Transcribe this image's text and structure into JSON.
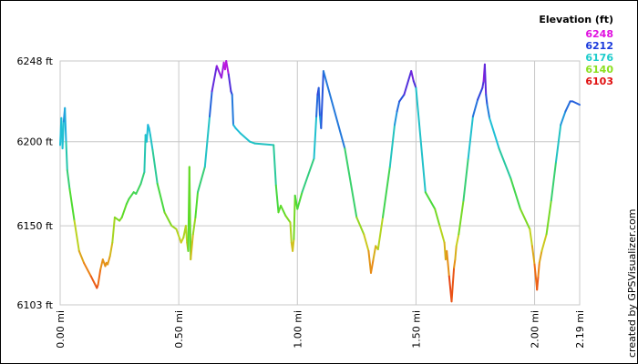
{
  "chart_data": {
    "type": "line",
    "xlabel": "",
    "ylabel": "",
    "xlim": [
      0,
      2.19
    ],
    "ylim": [
      6103,
      6248
    ],
    "x_ticks": [
      {
        "value": 0.0,
        "label": "0.00 mi"
      },
      {
        "value": 0.5,
        "label": "0.50 mi"
      },
      {
        "value": 1.0,
        "label": "1.00 mi"
      },
      {
        "value": 1.5,
        "label": "1.50 mi"
      },
      {
        "value": 2.0,
        "label": "2.00 mi"
      },
      {
        "value": 2.19,
        "label": "2.19 mi"
      }
    ],
    "y_ticks": [
      {
        "value": 6103,
        "label": "6103 ft"
      },
      {
        "value": 6150,
        "label": "6150 ft"
      },
      {
        "value": 6200,
        "label": "6200 ft"
      },
      {
        "value": 6248,
        "label": "6248 ft"
      }
    ],
    "grid": true,
    "legend": {
      "placement": "top-right",
      "title": "Elevation (ft)",
      "entries": [
        {
          "label": "6248",
          "color": "#e010e0"
        },
        {
          "label": "6212",
          "color": "#1a3adc"
        },
        {
          "label": "6176",
          "color": "#1ccccc"
        },
        {
          "label": "6140",
          "color": "#8ce020"
        },
        {
          "label": "6103",
          "color": "#e01010"
        }
      ]
    },
    "credit": "created by GPSVisualizer.com",
    "x": [
      0.0,
      0.005,
      0.01,
      0.015,
      0.02,
      0.025,
      0.03,
      0.04,
      0.06,
      0.08,
      0.1,
      0.13,
      0.155,
      0.16,
      0.17,
      0.18,
      0.19,
      0.195,
      0.2,
      0.21,
      0.22,
      0.23,
      0.25,
      0.26,
      0.28,
      0.29,
      0.31,
      0.32,
      0.34,
      0.355,
      0.36,
      0.365,
      0.37,
      0.375,
      0.38,
      0.39,
      0.41,
      0.44,
      0.47,
      0.49,
      0.505,
      0.51,
      0.52,
      0.53,
      0.535,
      0.54,
      0.545,
      0.55,
      0.56,
      0.57,
      0.58,
      0.61,
      0.63,
      0.64,
      0.66,
      0.68,
      0.69,
      0.695,
      0.7,
      0.71,
      0.72,
      0.725,
      0.73,
      0.74,
      0.76,
      0.8,
      0.82,
      0.9,
      0.91,
      0.92,
      0.93,
      0.95,
      0.97,
      0.975,
      0.98,
      0.985,
      0.99,
      1.0,
      1.02,
      1.07,
      1.08,
      1.085,
      1.09,
      1.095,
      1.1,
      1.11,
      1.2,
      1.25,
      1.28,
      1.3,
      1.31,
      1.32,
      1.33,
      1.34,
      1.36,
      1.39,
      1.41,
      1.42,
      1.43,
      1.45,
      1.48,
      1.49,
      1.5,
      1.54,
      1.58,
      1.6,
      1.62,
      1.625,
      1.63,
      1.64,
      1.65,
      1.66,
      1.665,
      1.67,
      1.68,
      1.7,
      1.72,
      1.74,
      1.76,
      1.78,
      1.785,
      1.79,
      1.795,
      1.8,
      1.81,
      1.85,
      1.9,
      1.94,
      1.98,
      1.99,
      2.0,
      2.01,
      2.015,
      2.02,
      2.03,
      2.05,
      2.07,
      2.09,
      2.11,
      2.13,
      2.15,
      2.16,
      2.19
    ],
    "values": [
      6198,
      6214,
      6196,
      6212,
      6220,
      6200,
      6183,
      6172,
      6153,
      6135,
      6128,
      6120,
      6113,
      6115,
      6124,
      6130,
      6126,
      6128,
      6127,
      6132,
      6140,
      6155,
      6153,
      6155,
      6163,
      6166,
      6170,
      6169,
      6175,
      6182,
      6204,
      6200,
      6210,
      6208,
      6204,
      6195,
      6175,
      6158,
      6150,
      6148,
      6142,
      6140,
      6143,
      6150,
      6140,
      6135,
      6185,
      6130,
      6145,
      6155,
      6170,
      6185,
      6215,
      6230,
      6245,
      6238,
      6247,
      6243,
      6248,
      6240,
      6230,
      6228,
      6210,
      6208,
      6205,
      6200,
      6199,
      6198,
      6174,
      6158,
      6162,
      6156,
      6152,
      6140,
      6135,
      6142,
      6168,
      6160,
      6170,
      6190,
      6215,
      6228,
      6232,
      6215,
      6208,
      6242,
      6196,
      6155,
      6145,
      6135,
      6122,
      6130,
      6138,
      6136,
      6155,
      6185,
      6210,
      6218,
      6224,
      6228,
      6242,
      6236,
      6232,
      6170,
      6160,
      6150,
      6140,
      6130,
      6135,
      6120,
      6105,
      6125,
      6130,
      6138,
      6145,
      6165,
      6190,
      6215,
      6225,
      6232,
      6236,
      6246,
      6228,
      6222,
      6214,
      6196,
      6178,
      6160,
      6148,
      6138,
      6127,
      6112,
      6120,
      6128,
      6135,
      6145,
      6165,
      6188,
      6210,
      6218,
      6224,
      6224,
      6222
    ]
  }
}
